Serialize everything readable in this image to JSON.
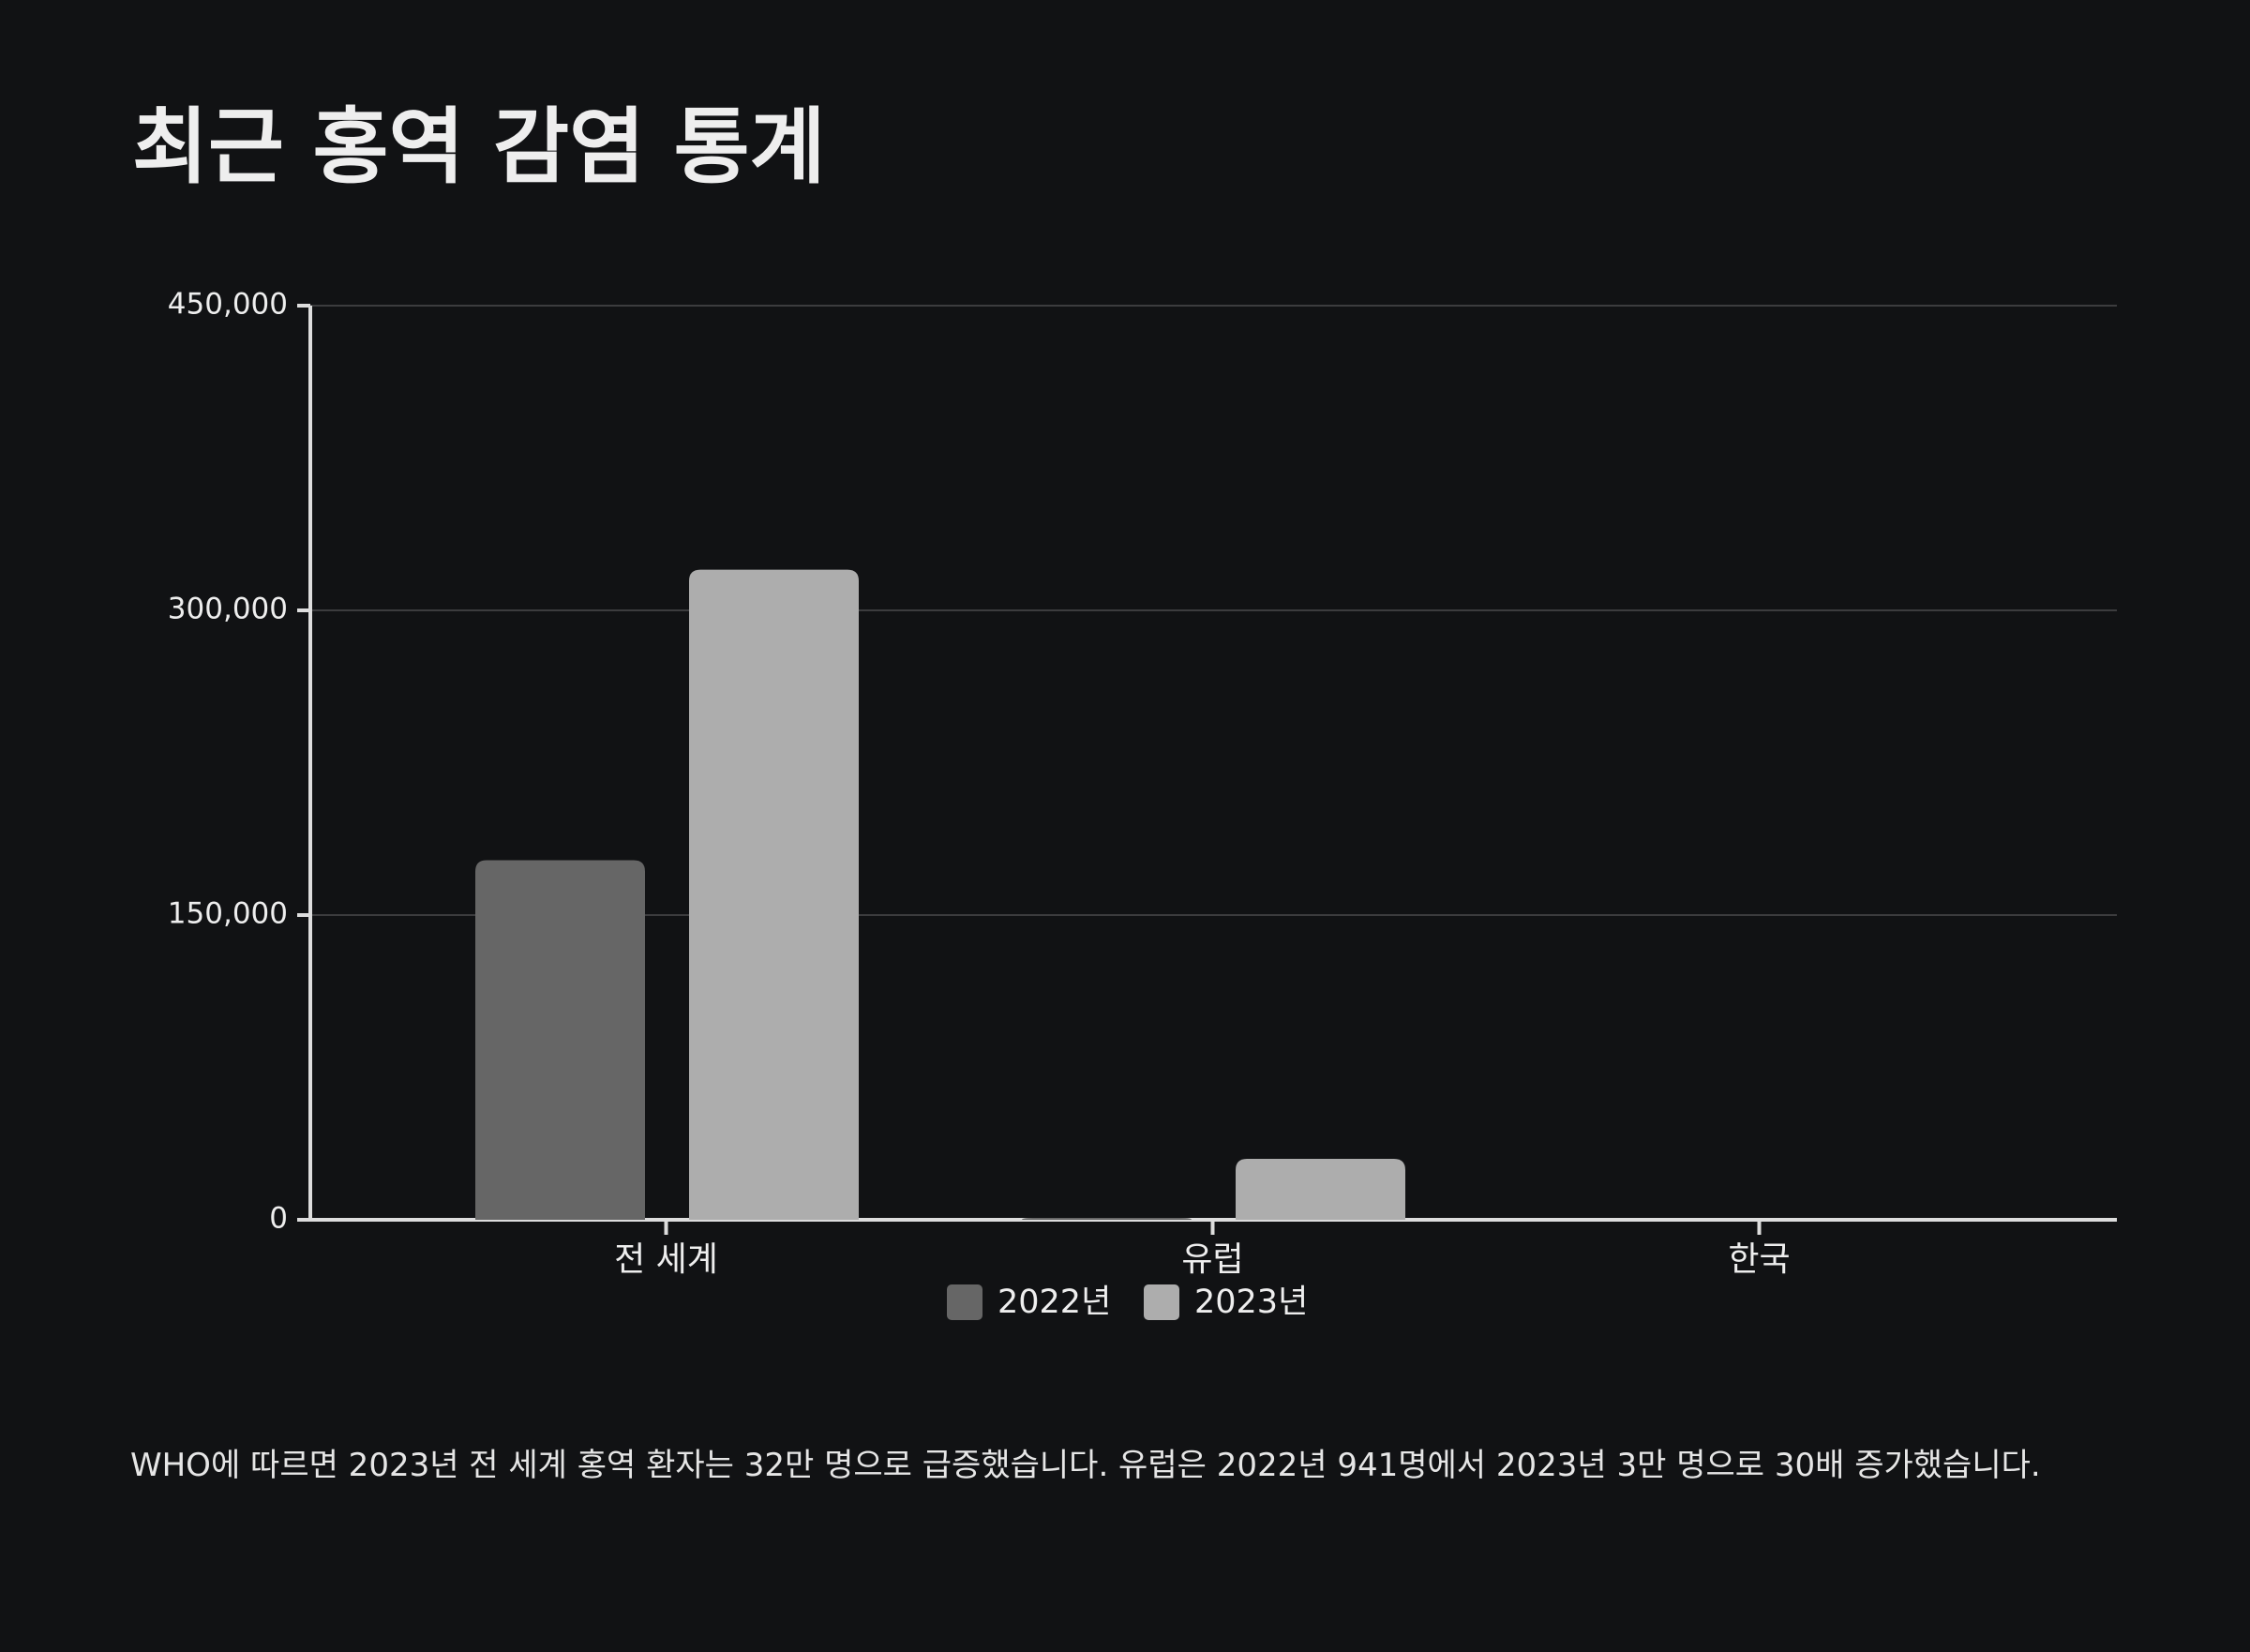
{
  "chart_data": {
    "type": "bar",
    "title": "최근 홍역 감염 통계",
    "categories": [
      "전 세계",
      "유럽",
      "한국"
    ],
    "series": [
      {
        "name": "2022년",
        "color": "#666666",
        "values": [
          177000,
          941,
          0
        ]
      },
      {
        "name": "2023년",
        "color": "#adadad",
        "values": [
          320000,
          30000,
          0
        ]
      }
    ],
    "ylim": [
      0,
      450000
    ],
    "yticks": [
      0,
      {
        "value": 150000,
        "label": "150,000"
      },
      {
        "value": 300000,
        "label": "300,000"
      },
      {
        "value": 450000,
        "label": "450,000"
      }
    ],
    "grid": true
  },
  "footnote": "WHO에 따르면 2023년 전 세계 홍역 환자는 32만 명으로 급증했습니다. 유럽은 2022년 941명에서 2023년 3만 명으로 30배 증가했습니다."
}
